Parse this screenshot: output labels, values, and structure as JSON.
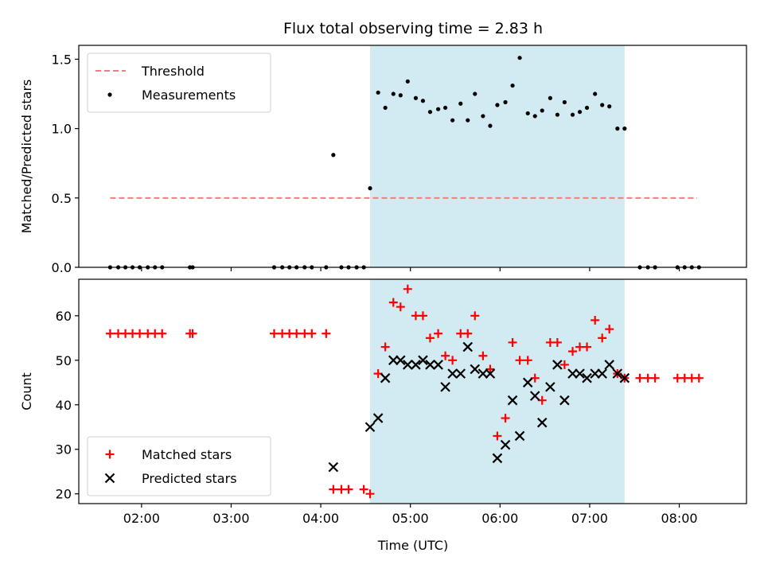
{
  "chart_data": {
    "title": "Flux total observing time = 2.83 h",
    "xlabel": "Time (UTC)",
    "x_unit": "hours UTC",
    "xlim": [
      1.3,
      8.75
    ],
    "xticks": [
      {
        "value": 2,
        "label": "02:00"
      },
      {
        "value": 3,
        "label": "03:00"
      },
      {
        "value": 4,
        "label": "04:00"
      },
      {
        "value": 5,
        "label": "05:00"
      },
      {
        "value": 6,
        "label": "06:00"
      },
      {
        "value": 7,
        "label": "07:00"
      },
      {
        "value": 8,
        "label": "08:00"
      }
    ],
    "shaded_region": {
      "x_start": 4.55,
      "x_end": 7.39,
      "color": "#add8e6"
    },
    "panels": [
      {
        "type": "scatter",
        "ylabel": "Matched/Predicted stars",
        "ylim": [
          0,
          1.6
        ],
        "yticks": [
          {
            "value": 0,
            "label": "0.0"
          },
          {
            "value": 0.5,
            "label": "0.5"
          },
          {
            "value": 1.0,
            "label": "1.0"
          },
          {
            "value": 1.5,
            "label": "1.5"
          }
        ],
        "legend": {
          "position": "upper left"
        },
        "threshold": {
          "name": "Threshold",
          "y": 0.5,
          "x_start": 1.65,
          "x_end": 8.2,
          "color": "#f08080",
          "style": "dashed"
        },
        "series": [
          {
            "name": "Measurements",
            "marker": "dot",
            "color": "#000000",
            "points": [
              [
                1.65,
                0
              ],
              [
                1.74,
                0
              ],
              [
                1.82,
                0
              ],
              [
                1.9,
                0
              ],
              [
                1.98,
                0
              ],
              [
                2.07,
                0
              ],
              [
                2.15,
                0
              ],
              [
                2.23,
                0
              ],
              [
                2.54,
                0
              ],
              [
                2.57,
                0
              ],
              [
                3.48,
                0
              ],
              [
                3.57,
                0
              ],
              [
                3.65,
                0
              ],
              [
                3.73,
                0
              ],
              [
                3.82,
                0
              ],
              [
                3.9,
                0
              ],
              [
                4.06,
                0
              ],
              [
                4.23,
                0
              ],
              [
                4.31,
                0
              ],
              [
                4.4,
                0
              ],
              [
                4.48,
                0
              ],
              [
                4.14,
                0.81
              ],
              [
                4.55,
                0.57
              ],
              [
                4.64,
                1.26
              ],
              [
                4.72,
                1.15
              ],
              [
                4.81,
                1.25
              ],
              [
                4.89,
                1.24
              ],
              [
                4.97,
                1.34
              ],
              [
                5.06,
                1.22
              ],
              [
                5.14,
                1.2
              ],
              [
                5.22,
                1.12
              ],
              [
                5.31,
                1.14
              ],
              [
                5.39,
                1.15
              ],
              [
                5.47,
                1.06
              ],
              [
                5.56,
                1.18
              ],
              [
                5.64,
                1.06
              ],
              [
                5.72,
                1.25
              ],
              [
                5.81,
                1.09
              ],
              [
                5.89,
                1.02
              ],
              [
                5.97,
                1.17
              ],
              [
                6.06,
                1.19
              ],
              [
                6.14,
                1.31
              ],
              [
                6.22,
                1.51
              ],
              [
                6.31,
                1.11
              ],
              [
                6.39,
                1.09
              ],
              [
                6.47,
                1.13
              ],
              [
                6.56,
                1.22
              ],
              [
                6.64,
                1.1
              ],
              [
                6.72,
                1.19
              ],
              [
                6.81,
                1.1
              ],
              [
                6.89,
                1.12
              ],
              [
                6.97,
                1.15
              ],
              [
                7.06,
                1.25
              ],
              [
                7.14,
                1.17
              ],
              [
                7.22,
                1.16
              ],
              [
                7.31,
                1.0
              ],
              [
                7.39,
                1.0
              ],
              [
                7.56,
                0
              ],
              [
                7.65,
                0
              ],
              [
                7.73,
                0
              ],
              [
                7.98,
                0
              ],
              [
                8.06,
                0
              ],
              [
                8.14,
                0
              ],
              [
                8.22,
                0
              ]
            ]
          }
        ]
      },
      {
        "type": "scatter",
        "ylabel": "Count",
        "ylim": [
          17.8,
          68.2
        ],
        "yticks": [
          {
            "value": 20,
            "label": "20"
          },
          {
            "value": 30,
            "label": "30"
          },
          {
            "value": 40,
            "label": "40"
          },
          {
            "value": 50,
            "label": "50"
          },
          {
            "value": 60,
            "label": "60"
          }
        ],
        "legend": {
          "position": "lower left"
        },
        "series": [
          {
            "name": "Matched stars",
            "marker": "plus",
            "color": "#ff0000",
            "points": [
              [
                1.65,
                56
              ],
              [
                1.74,
                56
              ],
              [
                1.82,
                56
              ],
              [
                1.9,
                56
              ],
              [
                1.98,
                56
              ],
              [
                2.07,
                56
              ],
              [
                2.15,
                56
              ],
              [
                2.23,
                56
              ],
              [
                2.54,
                56
              ],
              [
                2.57,
                56
              ],
              [
                3.48,
                56
              ],
              [
                3.57,
                56
              ],
              [
                3.65,
                56
              ],
              [
                3.73,
                56
              ],
              [
                3.82,
                56
              ],
              [
                3.9,
                56
              ],
              [
                4.06,
                56
              ],
              [
                4.14,
                21
              ],
              [
                4.23,
                21
              ],
              [
                4.31,
                21
              ],
              [
                4.48,
                21
              ],
              [
                4.55,
                20
              ],
              [
                4.64,
                47
              ],
              [
                4.72,
                53
              ],
              [
                4.81,
                63
              ],
              [
                4.89,
                62
              ],
              [
                4.97,
                66
              ],
              [
                5.06,
                60
              ],
              [
                5.14,
                60
              ],
              [
                5.22,
                55
              ],
              [
                5.31,
                56
              ],
              [
                5.39,
                51
              ],
              [
                5.47,
                50
              ],
              [
                5.56,
                56
              ],
              [
                5.64,
                56
              ],
              [
                5.72,
                60
              ],
              [
                5.81,
                51
              ],
              [
                5.89,
                48
              ],
              [
                5.97,
                33
              ],
              [
                6.06,
                37
              ],
              [
                6.14,
                54
              ],
              [
                6.22,
                50
              ],
              [
                6.31,
                50
              ],
              [
                6.39,
                46
              ],
              [
                6.47,
                41
              ],
              [
                6.56,
                54
              ],
              [
                6.64,
                54
              ],
              [
                6.72,
                49
              ],
              [
                6.81,
                52
              ],
              [
                6.89,
                53
              ],
              [
                6.97,
                53
              ],
              [
                7.06,
                59
              ],
              [
                7.14,
                55
              ],
              [
                7.22,
                57
              ],
              [
                7.31,
                47
              ],
              [
                7.39,
                46
              ],
              [
                7.56,
                46
              ],
              [
                7.65,
                46
              ],
              [
                7.73,
                46
              ],
              [
                7.98,
                46
              ],
              [
                8.06,
                46
              ],
              [
                8.14,
                46
              ],
              [
                8.22,
                46
              ]
            ]
          },
          {
            "name": "Predicted stars",
            "marker": "x",
            "color": "#000000",
            "points": [
              [
                4.14,
                26
              ],
              [
                4.55,
                35
              ],
              [
                4.64,
                37
              ],
              [
                4.72,
                46
              ],
              [
                4.81,
                50
              ],
              [
                4.89,
                50
              ],
              [
                4.97,
                49
              ],
              [
                5.06,
                49
              ],
              [
                5.14,
                50
              ],
              [
                5.22,
                49
              ],
              [
                5.31,
                49
              ],
              [
                5.39,
                44
              ],
              [
                5.47,
                47
              ],
              [
                5.56,
                47
              ],
              [
                5.64,
                53
              ],
              [
                5.72,
                48
              ],
              [
                5.81,
                47
              ],
              [
                5.89,
                47
              ],
              [
                5.97,
                28
              ],
              [
                6.06,
                31
              ],
              [
                6.14,
                41
              ],
              [
                6.22,
                33
              ],
              [
                6.31,
                45
              ],
              [
                6.39,
                42
              ],
              [
                6.47,
                36
              ],
              [
                6.56,
                44
              ],
              [
                6.64,
                49
              ],
              [
                6.72,
                41
              ],
              [
                6.81,
                47
              ],
              [
                6.89,
                47
              ],
              [
                6.97,
                46
              ],
              [
                7.06,
                47
              ],
              [
                7.14,
                47
              ],
              [
                7.22,
                49
              ],
              [
                7.31,
                47
              ],
              [
                7.39,
                46
              ]
            ]
          }
        ]
      }
    ]
  }
}
